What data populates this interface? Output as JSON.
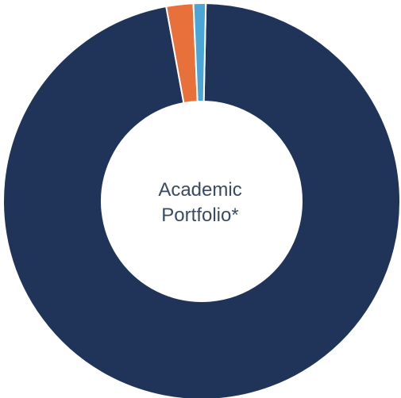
{
  "chart_data": {
    "type": "pie",
    "style": "donut",
    "center_label_lines": [
      "Academic",
      "Portfolio*"
    ],
    "slices": [
      {
        "value": 96.8,
        "color": "#203459"
      },
      {
        "value": 2.2,
        "color": "#e8703a"
      },
      {
        "value": 1.0,
        "color": "#4aa6d6"
      }
    ]
  }
}
